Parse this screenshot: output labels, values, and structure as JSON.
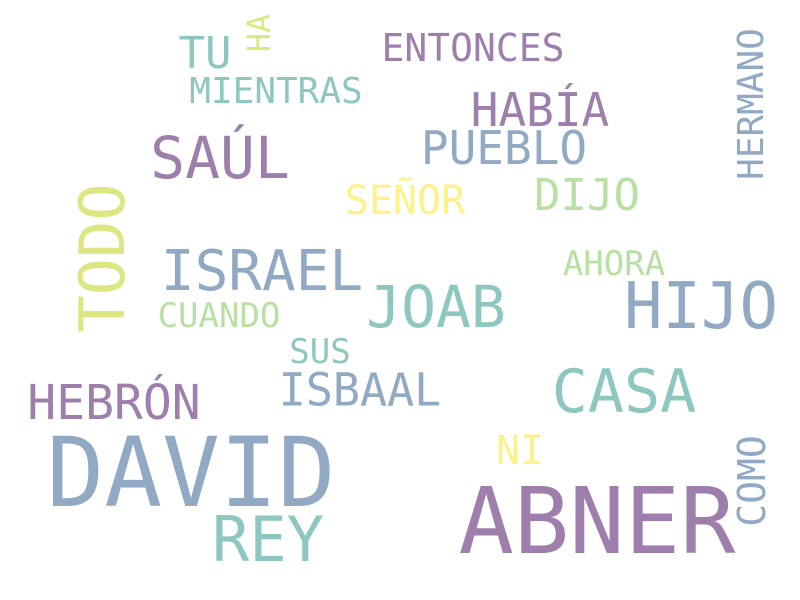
{
  "palette": {
    "purple": "#9e7fac",
    "steel": "#91a9c3",
    "teal": "#8ec7c0",
    "lime": "#dce784",
    "green": "#b9e0a4",
    "yellow": "#fbf28a",
    "background": "#ffffff"
  },
  "words": [
    {
      "text": "ABNER",
      "color": "purple"
    },
    {
      "text": "DAVID",
      "color": "steel"
    },
    {
      "text": "REY",
      "color": "teal"
    },
    {
      "text": "HIJO",
      "color": "steel"
    },
    {
      "text": "CASA",
      "color": "teal"
    },
    {
      "text": "JOAB",
      "color": "teal"
    },
    {
      "text": "ISRAEL",
      "color": "steel"
    },
    {
      "text": "TODO",
      "color": "lime"
    },
    {
      "text": "SAÚL",
      "color": "purple"
    },
    {
      "text": "HEBRÓN",
      "color": "purple"
    },
    {
      "text": "ISBAAL",
      "color": "steel"
    },
    {
      "text": "PUEBLO",
      "color": "steel"
    },
    {
      "text": "HABÍA",
      "color": "purple"
    },
    {
      "text": "DIJO",
      "color": "green"
    },
    {
      "text": "SEÑOR",
      "color": "yellow"
    },
    {
      "text": "ENTONCES",
      "color": "purple"
    },
    {
      "text": "HERMANO",
      "color": "steel"
    },
    {
      "text": "MIENTRAS",
      "color": "teal"
    },
    {
      "text": "TU",
      "color": "teal"
    },
    {
      "text": "HA",
      "color": "lime"
    },
    {
      "text": "AHORA",
      "color": "green"
    },
    {
      "text": "CUANDO",
      "color": "green"
    },
    {
      "text": "SUS",
      "color": "teal"
    },
    {
      "text": "NI",
      "color": "yellow"
    },
    {
      "text": "COMO",
      "color": "steel"
    }
  ]
}
